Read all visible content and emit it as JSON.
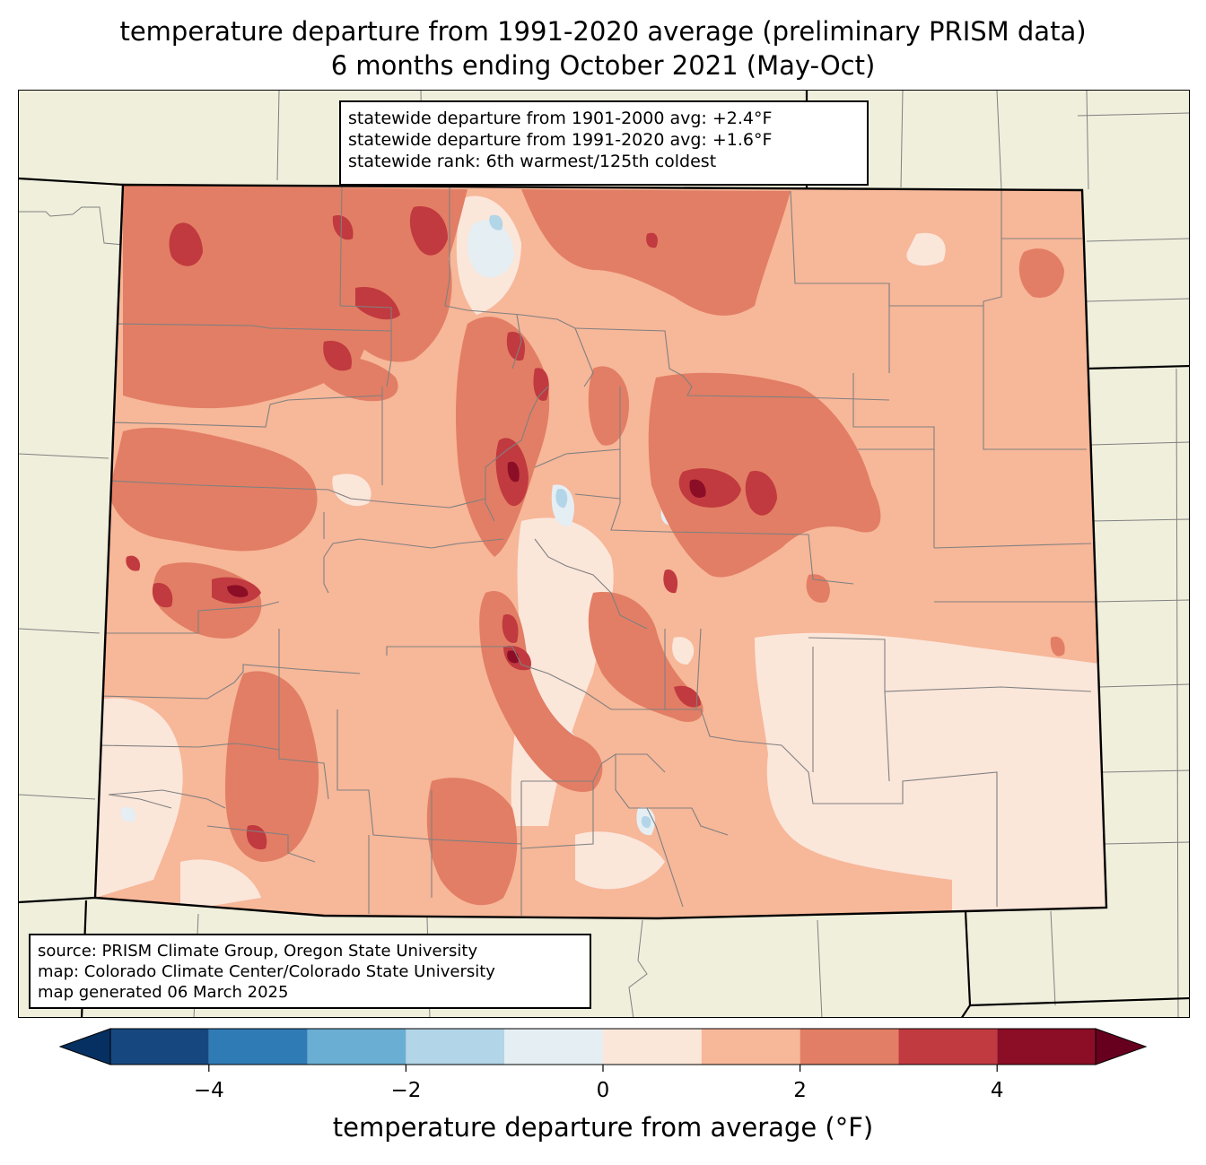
{
  "title": {
    "line1": "temperature departure from 1991-2020 average (preliminary PRISM data)",
    "line2": "6 months ending October 2021 (May-Oct)"
  },
  "stats": {
    "line1": "statewide departure from 1901-2000 avg: +2.4°F",
    "line2": "statewide departure from 1991-2020 avg: +1.6°F",
    "line3": "statewide rank: 6th warmest/125th coldest"
  },
  "source": {
    "line1": "source: PRISM Climate Group, Oregon State University",
    "line2": "map: Colorado Climate Center/Colorado State University",
    "line3": "map generated 06 March 2025"
  },
  "colorbar": {
    "label": "temperature departure from average (°F)",
    "range": [
      -5,
      5
    ],
    "ticks": [
      {
        "value": -4,
        "label": "−4"
      },
      {
        "value": -2,
        "label": "−2"
      },
      {
        "value": 0,
        "label": "0"
      },
      {
        "value": 2,
        "label": "2"
      },
      {
        "value": 4,
        "label": "4"
      }
    ],
    "under_color": "#053061",
    "over_color": "#67001f",
    "bins": [
      {
        "from": -5,
        "to": -4,
        "color": "#16487f"
      },
      {
        "from": -4,
        "to": -3,
        "color": "#2f7bb6"
      },
      {
        "from": -3,
        "to": -2,
        "color": "#6aaed3"
      },
      {
        "from": -2,
        "to": -1,
        "color": "#b2d5e7"
      },
      {
        "from": -1,
        "to": 0,
        "color": "#e5eef3"
      },
      {
        "from": 0,
        "to": 1,
        "color": "#fbe6da"
      },
      {
        "from": 1,
        "to": 2,
        "color": "#f7b799"
      },
      {
        "from": 2,
        "to": 3,
        "color": "#e27e65"
      },
      {
        "from": 3,
        "to": 4,
        "color": "#c13a3f"
      },
      {
        "from": 4,
        "to": 5,
        "color": "#8b0e26"
      }
    ]
  },
  "map": {
    "background_color": "#f0efdc",
    "county_line_color": "#808080",
    "state_line_color": "#000000"
  }
}
